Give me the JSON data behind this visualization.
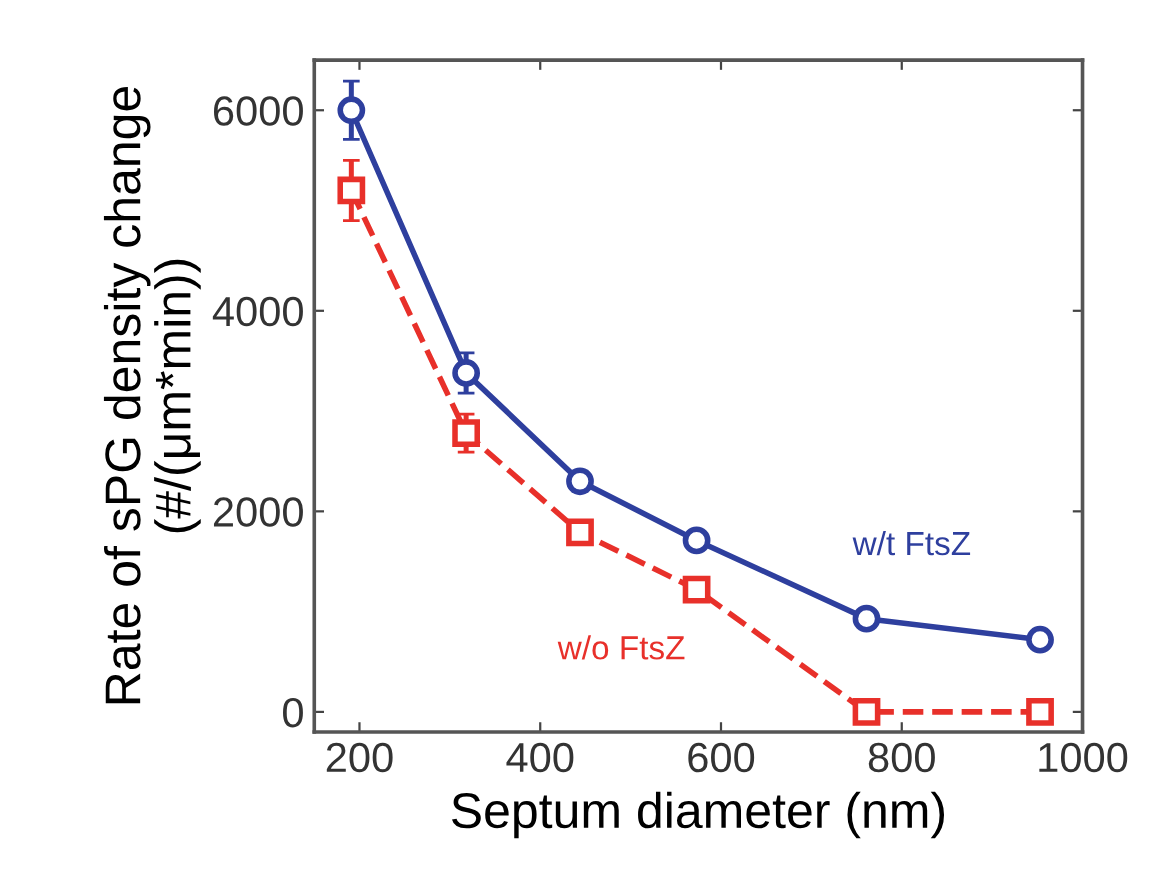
{
  "chart_data": {
    "type": "line",
    "xlabel": "Septum diameter (nm)",
    "ylabel": "Rate of sPG density change\n(#/(μm*min))",
    "xlim": [
      150,
      1000
    ],
    "xticks": [
      200,
      400,
      600,
      800,
      1000
    ],
    "ylim": [
      -200,
      6500
    ],
    "yticks": [
      0,
      2000,
      4000,
      6000
    ],
    "grid": false,
    "legend": false,
    "series": [
      {
        "name": "w/t FtsZ",
        "color": "#2e3f9e",
        "marker": "circle",
        "line_style": "solid",
        "x": [
          191,
          318,
          444,
          573,
          761,
          953
        ],
        "values": [
          6000,
          3380,
          2300,
          1710,
          930,
          720
        ],
        "errors": [
          290,
          200,
          100,
          70,
          40,
          30
        ]
      },
      {
        "name": "w/o FtsZ",
        "color": "#e8302a",
        "marker": "square",
        "line_style": "dashed",
        "x": [
          191,
          318,
          444,
          573,
          761,
          953
        ],
        "values": [
          5200,
          2780,
          1790,
          1220,
          0,
          0
        ],
        "errors": [
          300,
          190,
          100,
          60,
          null,
          null
        ]
      }
    ]
  }
}
